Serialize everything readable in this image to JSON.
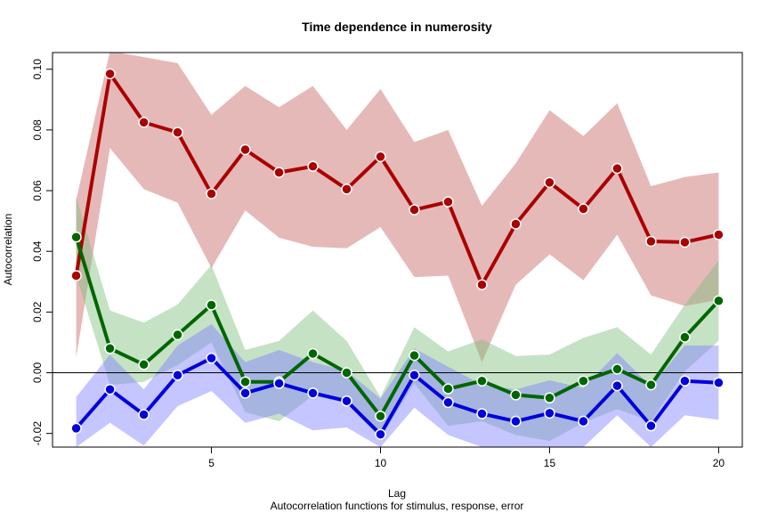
{
  "chart_data": {
    "type": "line",
    "title": "Time dependence in numerosity",
    "xlabel": "Lag",
    "subtitle": "Autocorrelation functions for stimulus, response, error",
    "ylabel": "Autocorrelation",
    "xlim": [
      0.3,
      20.7
    ],
    "ylim": [
      -0.0245,
      0.1055
    ],
    "x_ticks": [
      5,
      10,
      15,
      20
    ],
    "y_ticks": [
      -0.02,
      0.0,
      0.02,
      0.04,
      0.06,
      0.08,
      0.1
    ],
    "y_tick_labels": [
      "-0.02",
      "0.00",
      "0.02",
      "0.04",
      "0.06",
      "0.08",
      "0.10"
    ],
    "reference_line_y": 0,
    "grid": false,
    "legend": "none",
    "x": [
      1,
      2,
      3,
      4,
      5,
      6,
      7,
      8,
      9,
      10,
      11,
      12,
      13,
      14,
      15,
      16,
      17,
      18,
      19,
      20
    ],
    "series": [
      {
        "color": "#aa0000",
        "band_color": "#c86464",
        "values": [
          0.032,
          0.0985,
          0.0825,
          0.0792,
          0.059,
          0.0735,
          0.066,
          0.068,
          0.0605,
          0.0712,
          0.0537,
          0.0563,
          0.029,
          0.049,
          0.0627,
          0.054,
          0.0673,
          0.0433,
          0.043,
          0.0455
        ],
        "upper": [
          0.057,
          0.106,
          0.104,
          0.102,
          0.085,
          0.0945,
          0.0875,
          0.0945,
          0.08,
          0.0935,
          0.076,
          0.08,
          0.055,
          0.069,
          0.0865,
          0.078,
          0.0888,
          0.0615,
          0.0645,
          0.066
        ],
        "lower": [
          0.005,
          0.074,
          0.0605,
          0.056,
          0.0345,
          0.0535,
          0.0445,
          0.0415,
          0.041,
          0.048,
          0.0315,
          0.032,
          0.0035,
          0.029,
          0.039,
          0.0305,
          0.0455,
          0.0255,
          0.022,
          0.024
        ]
      },
      {
        "color": "#006600",
        "band_color": "#7fbf7f",
        "values": [
          0.0447,
          0.008,
          0.0027,
          0.0125,
          0.0223,
          -0.003,
          -0.003,
          0.0063,
          0.0,
          -0.0143,
          0.0057,
          -0.0053,
          -0.0027,
          -0.0073,
          -0.0083,
          -0.0027,
          0.0012,
          -0.004,
          0.0117,
          0.0237
        ],
        "upper": [
          0.058,
          0.0205,
          0.0165,
          0.0225,
          0.0355,
          0.0075,
          0.0105,
          0.0205,
          0.0105,
          -0.008,
          0.015,
          0.007,
          0.011,
          0.0055,
          0.006,
          0.0115,
          0.015,
          0.006,
          0.0225,
          0.037
        ],
        "lower": [
          0.032,
          -0.004,
          -0.003,
          0.0025,
          0.01,
          -0.013,
          -0.016,
          -0.0075,
          -0.01,
          -0.0215,
          -0.0035,
          -0.0175,
          -0.016,
          -0.0205,
          -0.0225,
          -0.0165,
          -0.012,
          -0.016,
          0.0005,
          0.0105
        ]
      },
      {
        "color": "#0000dd",
        "band_color": "#7f7fff",
        "values": [
          -0.0183,
          -0.0055,
          -0.0138,
          -0.0008,
          0.0048,
          -0.0067,
          -0.0035,
          -0.0067,
          -0.0093,
          -0.0203,
          -0.0008,
          -0.0098,
          -0.0135,
          -0.016,
          -0.0133,
          -0.016,
          -0.0043,
          -0.0175,
          -0.0027,
          -0.0033
        ],
        "upper": [
          -0.008,
          0.006,
          -0.0055,
          0.009,
          0.016,
          0.0035,
          0.0075,
          0.0035,
          0.0005,
          -0.0085,
          0.008,
          0.002,
          -0.004,
          -0.0055,
          -0.0025,
          -0.005,
          0.0065,
          -0.0045,
          0.009,
          0.009
        ],
        "lower": [
          -0.0245,
          -0.0165,
          -0.024,
          -0.011,
          -0.006,
          -0.0165,
          -0.0135,
          -0.019,
          -0.018,
          -0.0245,
          -0.0115,
          -0.0205,
          -0.0245,
          -0.0245,
          -0.0245,
          -0.0245,
          -0.014,
          -0.0245,
          -0.014,
          -0.0155
        ]
      }
    ]
  }
}
